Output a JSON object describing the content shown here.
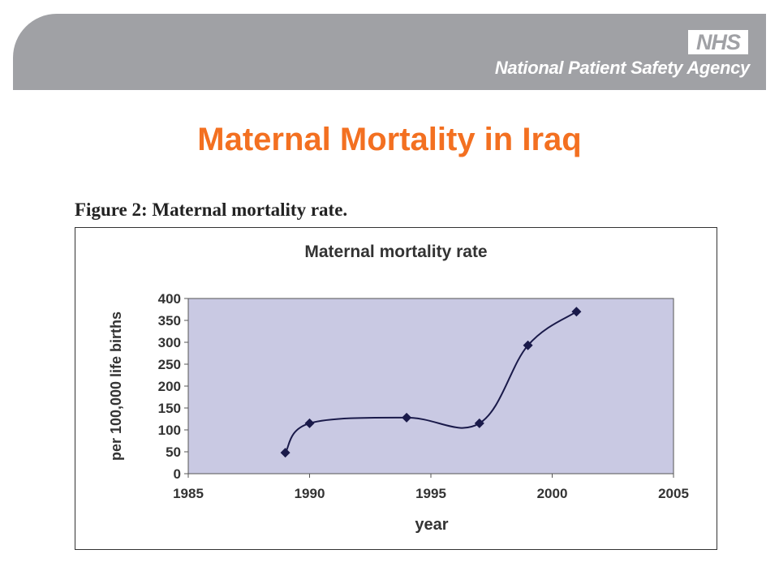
{
  "header": {
    "logo_text": "NHS",
    "agency_name": "National Patient Safety Agency",
    "banner_color": "#a0a1a5"
  },
  "slide": {
    "title": "Maternal Mortality in Iraq",
    "title_color": "#f37021"
  },
  "figure": {
    "caption": "Figure 2: Maternal mortality rate."
  },
  "chart_data": {
    "type": "line",
    "title": "Maternal mortality rate",
    "xlabel": "year",
    "ylabel": "per 100,000 life births",
    "xlim": [
      1985,
      2005
    ],
    "ylim": [
      0,
      400
    ],
    "xticks": [
      1985,
      1990,
      1995,
      2000,
      2005
    ],
    "yticks": [
      0,
      50,
      100,
      150,
      200,
      250,
      300,
      350,
      400
    ],
    "grid": false,
    "legend": false,
    "plot_background": "#c9c9e3",
    "line_color": "#1a1a4a",
    "series": [
      {
        "x": [
          1989,
          1990,
          1994,
          1997,
          1999,
          2001
        ],
        "values": [
          48,
          115,
          128,
          115,
          293,
          370
        ]
      }
    ]
  }
}
